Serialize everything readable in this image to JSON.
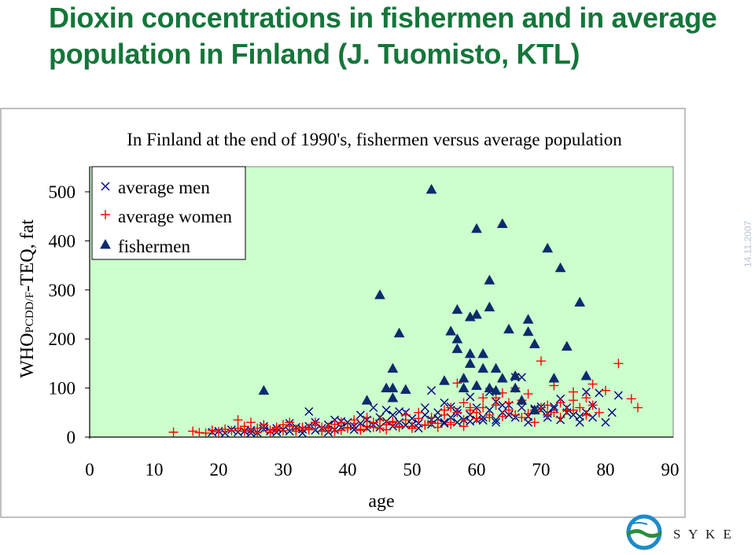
{
  "slide": {
    "title_line1": "Dioxin concentrations in fishermen and in average",
    "title_line2": "population in Finland (J. Tuomisto, KTL)",
    "date": "14.11.2007",
    "logo_text": "S Y K E"
  },
  "chart_data": {
    "type": "scatter",
    "title": "In Finland at the end of 1990's, fishermen versus average population",
    "xlabel": "age",
    "ylabel": "WHOPCDD/F-TEQ, fat",
    "xlim": [
      0,
      90
    ],
    "ylim": [
      0,
      500
    ],
    "x_ticks": [
      "0",
      "10",
      "20",
      "30",
      "40",
      "50",
      "60",
      "70",
      "80",
      "90"
    ],
    "y_ticks": [
      "0",
      "100",
      "200",
      "300",
      "400",
      "500"
    ],
    "background": "#ccffcc",
    "grid": false,
    "legend_position": "top-left",
    "series": [
      {
        "name": "average men",
        "marker": "x",
        "color": "#000080",
        "points": [
          [
            19,
            10
          ],
          [
            20,
            12
          ],
          [
            21,
            8
          ],
          [
            22,
            15
          ],
          [
            23,
            10
          ],
          [
            24,
            12
          ],
          [
            25,
            14
          ],
          [
            26,
            9
          ],
          [
            27,
            16
          ],
          [
            28,
            12
          ],
          [
            29,
            18
          ],
          [
            30,
            15
          ],
          [
            31,
            12
          ],
          [
            32,
            20
          ],
          [
            33,
            16
          ],
          [
            34,
            22
          ],
          [
            35,
            14
          ],
          [
            36,
            18
          ],
          [
            37,
            25
          ],
          [
            38,
            15
          ],
          [
            39,
            20
          ],
          [
            40,
            30
          ],
          [
            41,
            22
          ],
          [
            42,
            28
          ],
          [
            43,
            35
          ],
          [
            44,
            25
          ],
          [
            45,
            40
          ],
          [
            46,
            32
          ],
          [
            47,
            45
          ],
          [
            48,
            30
          ],
          [
            49,
            50
          ],
          [
            50,
            38
          ],
          [
            51,
            28
          ],
          [
            52,
            45
          ],
          [
            53,
            35
          ],
          [
            54,
            50
          ],
          [
            55,
            30
          ],
          [
            56,
            40
          ],
          [
            57,
            55
          ],
          [
            58,
            35
          ],
          [
            59,
            45
          ],
          [
            60,
            60
          ],
          [
            61,
            40
          ],
          [
            62,
            55
          ],
          [
            63,
            35
          ],
          [
            64,
            50
          ],
          [
            65,
            65
          ],
          [
            66,
            40
          ],
          [
            67,
            60
          ],
          [
            68,
            30
          ],
          [
            69,
            55
          ],
          [
            70,
            62
          ],
          [
            71,
            40
          ],
          [
            72,
            58
          ],
          [
            73,
            35
          ],
          [
            74,
            60
          ],
          [
            75,
            45
          ],
          [
            76,
            30
          ],
          [
            77,
            50
          ],
          [
            78,
            40
          ],
          [
            79,
            90
          ],
          [
            80,
            30
          ],
          [
            81,
            50
          ],
          [
            82,
            85
          ],
          [
            44,
            60
          ],
          [
            46,
            55
          ],
          [
            48,
            52
          ],
          [
            52,
            60
          ],
          [
            53,
            95
          ],
          [
            54,
            38
          ],
          [
            56,
            62
          ],
          [
            59,
            82
          ],
          [
            62,
            92
          ],
          [
            64,
            65
          ],
          [
            66,
            122
          ],
          [
            67,
            122
          ],
          [
            69,
            58
          ],
          [
            71,
            48
          ],
          [
            73,
            78
          ],
          [
            76,
            42
          ],
          [
            78,
            65
          ],
          [
            34,
            52
          ],
          [
            38,
            35
          ],
          [
            42,
            45
          ],
          [
            50,
            25
          ],
          [
            55,
            70
          ],
          [
            57,
            48
          ],
          [
            60,
            35
          ],
          [
            63,
            72
          ],
          [
            65,
            45
          ],
          [
            68,
            42
          ],
          [
            70,
            55
          ],
          [
            72,
            62
          ],
          [
            74,
            50
          ],
          [
            77,
            92
          ],
          [
            25,
            8
          ],
          [
            27,
            22
          ],
          [
            29,
            10
          ],
          [
            31,
            28
          ],
          [
            33,
            8
          ],
          [
            35,
            30
          ],
          [
            37,
            10
          ],
          [
            39,
            32
          ],
          [
            41,
            15
          ],
          [
            43,
            18
          ],
          [
            45,
            20
          ],
          [
            47,
            22
          ],
          [
            49,
            24
          ],
          [
            51,
            18
          ],
          [
            53,
            26
          ],
          [
            55,
            28
          ],
          [
            57,
            30
          ],
          [
            59,
            32
          ],
          [
            61,
            34
          ],
          [
            63,
            30
          ]
        ]
      },
      {
        "name": "average women",
        "marker": "+",
        "color": "#ff0000",
        "points": [
          [
            13,
            10
          ],
          [
            16,
            12
          ],
          [
            17,
            9
          ],
          [
            18,
            8
          ],
          [
            19,
            14
          ],
          [
            20,
            11
          ],
          [
            21,
            16
          ],
          [
            22,
            13
          ],
          [
            23,
            18
          ],
          [
            24,
            12
          ],
          [
            25,
            15
          ],
          [
            26,
            10
          ],
          [
            27,
            20
          ],
          [
            28,
            14
          ],
          [
            29,
            17
          ],
          [
            30,
            13
          ],
          [
            31,
            22
          ],
          [
            32,
            16
          ],
          [
            33,
            19
          ],
          [
            34,
            15
          ],
          [
            35,
            24
          ],
          [
            36,
            12
          ],
          [
            37,
            18
          ],
          [
            38,
            26
          ],
          [
            39,
            14
          ],
          [
            40,
            20
          ],
          [
            41,
            28
          ],
          [
            42,
            16
          ],
          [
            43,
            22
          ],
          [
            44,
            30
          ],
          [
            45,
            18
          ],
          [
            46,
            25
          ],
          [
            47,
            32
          ],
          [
            48,
            20
          ],
          [
            49,
            35
          ],
          [
            50,
            22
          ],
          [
            51,
            38
          ],
          [
            52,
            25
          ],
          [
            53,
            40
          ],
          [
            54,
            28
          ],
          [
            55,
            45
          ],
          [
            56,
            30
          ],
          [
            57,
            50
          ],
          [
            58,
            35
          ],
          [
            59,
            55
          ],
          [
            60,
            38
          ],
          [
            61,
            60
          ],
          [
            62,
            40
          ],
          [
            63,
            65
          ],
          [
            64,
            42
          ],
          [
            65,
            70
          ],
          [
            66,
            45
          ],
          [
            67,
            75
          ],
          [
            68,
            48
          ],
          [
            69,
            55
          ],
          [
            70,
            60
          ],
          [
            71,
            65
          ],
          [
            72,
            50
          ],
          [
            73,
            70
          ],
          [
            74,
            55
          ],
          [
            75,
            75
          ],
          [
            76,
            60
          ],
          [
            77,
            80
          ],
          [
            78,
            65
          ],
          [
            79,
            50
          ],
          [
            80,
            95
          ],
          [
            82,
            150
          ],
          [
            84,
            78
          ],
          [
            85,
            60
          ],
          [
            70,
            155
          ],
          [
            72,
            105
          ],
          [
            75,
            92
          ],
          [
            78,
            108
          ],
          [
            57,
            110
          ],
          [
            61,
            80
          ],
          [
            64,
            90
          ],
          [
            66,
            100
          ],
          [
            68,
            88
          ],
          [
            23,
            35
          ],
          [
            25,
            30
          ],
          [
            27,
            25
          ],
          [
            29,
            20
          ],
          [
            31,
            30
          ],
          [
            33,
            20
          ],
          [
            35,
            30
          ],
          [
            37,
            20
          ],
          [
            39,
            30
          ],
          [
            41,
            35
          ],
          [
            43,
            40
          ],
          [
            45,
            35
          ],
          [
            47,
            30
          ],
          [
            49,
            45
          ],
          [
            51,
            50
          ],
          [
            53,
            30
          ],
          [
            55,
            55
          ],
          [
            56,
            60
          ],
          [
            58,
            70
          ],
          [
            59,
            60
          ],
          [
            60,
            50
          ],
          [
            62,
            45
          ],
          [
            63,
            80
          ],
          [
            65,
            55
          ],
          [
            67,
            40
          ],
          [
            69,
            30
          ],
          [
            71,
            45
          ],
          [
            73,
            40
          ],
          [
            75,
            55
          ],
          [
            77,
            45
          ],
          [
            24,
            22
          ],
          [
            26,
            18
          ],
          [
            28,
            10
          ],
          [
            30,
            25
          ],
          [
            32,
            12
          ],
          [
            34,
            18
          ],
          [
            36,
            20
          ],
          [
            38,
            12
          ],
          [
            40,
            18
          ],
          [
            42,
            14
          ],
          [
            44,
            20
          ],
          [
            46,
            15
          ],
          [
            48,
            22
          ],
          [
            50,
            18
          ],
          [
            52,
            24
          ],
          [
            54,
            20
          ],
          [
            56,
            26
          ],
          [
            58,
            22
          ]
        ]
      },
      {
        "name": "fishermen",
        "marker": "triangle",
        "color": "#0d2a6b",
        "points": [
          [
            27,
            95
          ],
          [
            43,
            75
          ],
          [
            45,
            290
          ],
          [
            46,
            100
          ],
          [
            47,
            100
          ],
          [
            47,
            140
          ],
          [
            47,
            80
          ],
          [
            48,
            212
          ],
          [
            49,
            97
          ],
          [
            53,
            505
          ],
          [
            55,
            115
          ],
          [
            56,
            216
          ],
          [
            57,
            260
          ],
          [
            57,
            180
          ],
          [
            57,
            200
          ],
          [
            58,
            100
          ],
          [
            58,
            120
          ],
          [
            59,
            245
          ],
          [
            59,
            170
          ],
          [
            59,
            150
          ],
          [
            60,
            425
          ],
          [
            60,
            105
          ],
          [
            60,
            250
          ],
          [
            61,
            170
          ],
          [
            61,
            140
          ],
          [
            62,
            320
          ],
          [
            62,
            265
          ],
          [
            62,
            100
          ],
          [
            63,
            140
          ],
          [
            63,
            95
          ],
          [
            64,
            435
          ],
          [
            64,
            120
          ],
          [
            65,
            220
          ],
          [
            66,
            125
          ],
          [
            66,
            100
          ],
          [
            67,
            75
          ],
          [
            68,
            240
          ],
          [
            68,
            215
          ],
          [
            69,
            190
          ],
          [
            69,
            55
          ],
          [
            71,
            385
          ],
          [
            72,
            120
          ],
          [
            73,
            345
          ],
          [
            74,
            185
          ],
          [
            76,
            275
          ],
          [
            77,
            125
          ]
        ]
      }
    ]
  }
}
